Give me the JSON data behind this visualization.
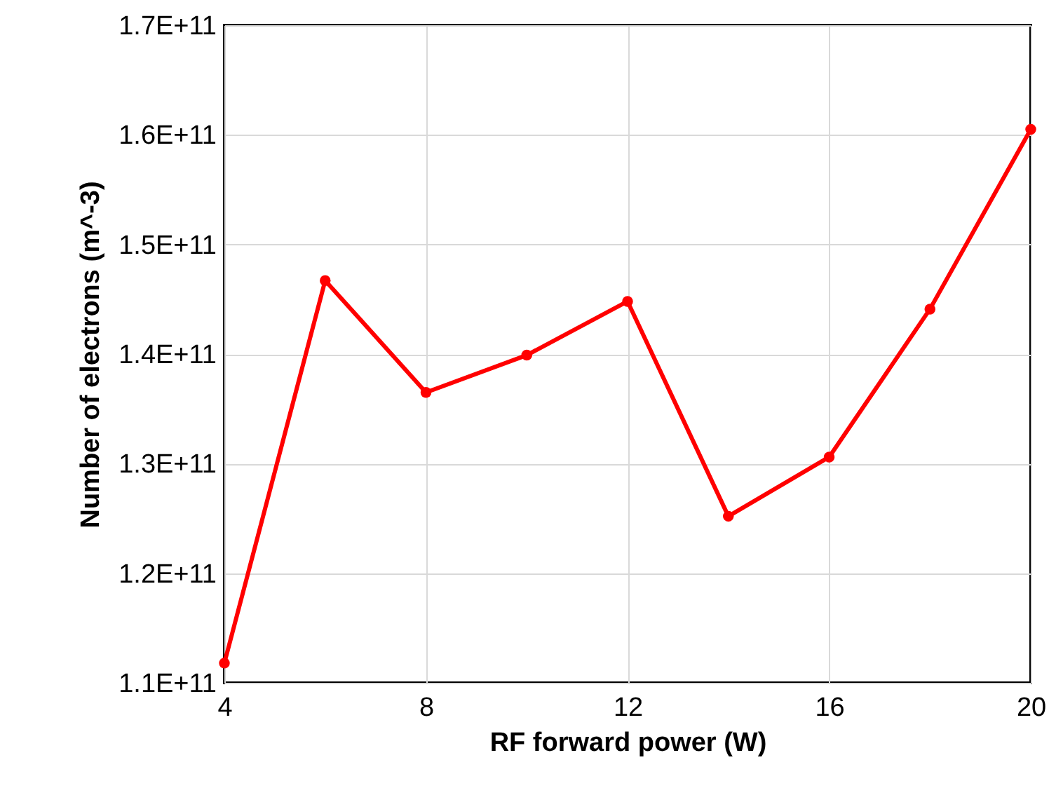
{
  "chart_data": {
    "type": "line",
    "xlabel": "RF forward power (W)",
    "ylabel": "Number of electrons (m^-3)",
    "x": [
      4,
      6,
      8,
      10,
      12,
      14,
      16,
      18,
      20
    ],
    "series": [
      {
        "color": "#ff0000",
        "values": [
          111800000000.0,
          146700000000.0,
          136500000000.0,
          139900000000.0,
          144800000000.0,
          125200000000.0,
          130600000000.0,
          144100000000.0,
          160500000000.0
        ]
      }
    ],
    "xlim": [
      4,
      20
    ],
    "xticks": [
      4,
      8,
      12,
      16,
      20
    ],
    "ylim": [
      110000000000.0,
      170000000000.0
    ],
    "yticks": [
      {
        "value": 110000000000.0,
        "label": "1.1E+11"
      },
      {
        "value": 120000000000.0,
        "label": "1.2E+11"
      },
      {
        "value": 130000000000.0,
        "label": "1.3E+11"
      },
      {
        "value": 140000000000.0,
        "label": "1.4E+11"
      },
      {
        "value": 150000000000.0,
        "label": "1.5E+11"
      },
      {
        "value": 160000000000.0,
        "label": "1.6E+11"
      },
      {
        "value": 170000000000.0,
        "label": "1.7E+11"
      }
    ],
    "grid": true,
    "marker": "circle",
    "line_style": "solid"
  }
}
